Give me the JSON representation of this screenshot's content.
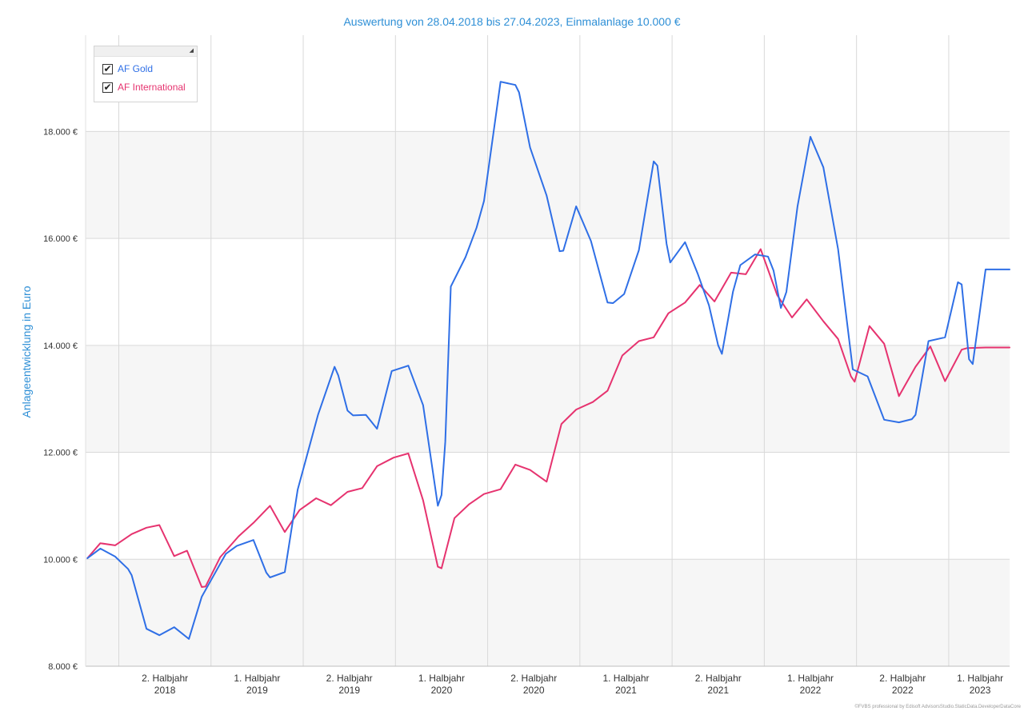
{
  "chart_data": {
    "type": "line",
    "title": "Auswertung von 28.04.2018 bis 27.04.2023, Einmalanlage 10.000 €",
    "ylabel": "Anlageentwicklung  in Euro",
    "xlabel": "",
    "ylim": [
      8000,
      19800
    ],
    "xlim": [
      2018.32,
      2023.33
    ],
    "yticks": [
      {
        "value": 8000,
        "label": "8.000 €"
      },
      {
        "value": 10000,
        "label": "10.000 €"
      },
      {
        "value": 12000,
        "label": "12.000 €"
      },
      {
        "value": 14000,
        "label": "14.000 €"
      },
      {
        "value": 16000,
        "label": "16.000 €"
      },
      {
        "value": 18000,
        "label": "18.000 €"
      }
    ],
    "xgrid": [
      2018.5,
      2019.0,
      2019.5,
      2020.0,
      2020.5,
      2021.0,
      2021.5,
      2022.0,
      2022.5,
      2023.0
    ],
    "xticks": [
      {
        "value": 2018.75,
        "line1": "2. Halbjahr",
        "line2": "2018"
      },
      {
        "value": 2019.25,
        "line1": "1. Halbjahr",
        "line2": "2019"
      },
      {
        "value": 2019.75,
        "line1": "2. Halbjahr",
        "line2": "2019"
      },
      {
        "value": 2020.25,
        "line1": "1. Halbjahr",
        "line2": "2020"
      },
      {
        "value": 2020.75,
        "line1": "2. Halbjahr",
        "line2": "2020"
      },
      {
        "value": 2021.25,
        "line1": "1. Halbjahr",
        "line2": "2021"
      },
      {
        "value": 2021.75,
        "line1": "2. Halbjahr",
        "line2": "2021"
      },
      {
        "value": 2022.25,
        "line1": "1. Halbjahr",
        "line2": "2022"
      },
      {
        "value": 2022.75,
        "line1": "2. Halbjahr",
        "line2": "2022"
      },
      {
        "value": 2023.17,
        "line1": "1. Halbjahr",
        "line2": "2023"
      }
    ],
    "grid": true,
    "legend_position": "top-left",
    "series": [
      {
        "name": "AF Gold",
        "color": "#2f6fe6",
        "points": [
          [
            2018.33,
            10020
          ],
          [
            2018.4,
            10200
          ],
          [
            2018.48,
            10050
          ],
          [
            2018.55,
            9820
          ],
          [
            2018.57,
            9700
          ],
          [
            2018.65,
            8700
          ],
          [
            2018.72,
            8580
          ],
          [
            2018.8,
            8730
          ],
          [
            2018.88,
            8510
          ],
          [
            2018.95,
            9300
          ],
          [
            2019.08,
            10100
          ],
          [
            2019.14,
            10250
          ],
          [
            2019.23,
            10360
          ],
          [
            2019.3,
            9750
          ],
          [
            2019.32,
            9660
          ],
          [
            2019.4,
            9760
          ],
          [
            2019.47,
            11300
          ],
          [
            2019.58,
            12700
          ],
          [
            2019.67,
            13600
          ],
          [
            2019.69,
            13440
          ],
          [
            2019.74,
            12780
          ],
          [
            2019.77,
            12690
          ],
          [
            2019.84,
            12700
          ],
          [
            2019.9,
            12440
          ],
          [
            2019.98,
            13520
          ],
          [
            2020.07,
            13620
          ],
          [
            2020.15,
            12880
          ],
          [
            2020.23,
            11000
          ],
          [
            2020.25,
            11200
          ],
          [
            2020.27,
            12200
          ],
          [
            2020.3,
            15100
          ],
          [
            2020.38,
            15650
          ],
          [
            2020.44,
            16200
          ],
          [
            2020.48,
            16700
          ],
          [
            2020.57,
            18930
          ],
          [
            2020.65,
            18870
          ],
          [
            2020.67,
            18730
          ],
          [
            2020.73,
            17700
          ],
          [
            2020.82,
            16800
          ],
          [
            2020.89,
            15760
          ],
          [
            2020.91,
            15770
          ],
          [
            2020.98,
            16600
          ],
          [
            2021.06,
            15950
          ],
          [
            2021.15,
            14800
          ],
          [
            2021.18,
            14790
          ],
          [
            2021.24,
            14960
          ],
          [
            2021.32,
            15780
          ],
          [
            2021.4,
            17440
          ],
          [
            2021.42,
            17360
          ],
          [
            2021.47,
            15900
          ],
          [
            2021.49,
            15550
          ],
          [
            2021.57,
            15930
          ],
          [
            2021.64,
            15330
          ],
          [
            2021.7,
            14750
          ],
          [
            2021.75,
            14000
          ],
          [
            2021.77,
            13840
          ],
          [
            2021.83,
            15000
          ],
          [
            2021.87,
            15500
          ],
          [
            2021.95,
            15700
          ],
          [
            2022.02,
            15660
          ],
          [
            2022.05,
            15400
          ],
          [
            2022.09,
            14700
          ],
          [
            2022.12,
            15000
          ],
          [
            2022.18,
            16600
          ],
          [
            2022.25,
            17900
          ],
          [
            2022.32,
            17330
          ],
          [
            2022.4,
            15800
          ],
          [
            2022.48,
            13550
          ],
          [
            2022.56,
            13420
          ],
          [
            2022.65,
            12610
          ],
          [
            2022.73,
            12560
          ],
          [
            2022.8,
            12620
          ],
          [
            2022.82,
            12700
          ],
          [
            2022.89,
            14080
          ],
          [
            2022.98,
            14150
          ],
          [
            2023.05,
            15180
          ],
          [
            2023.07,
            15140
          ],
          [
            2023.11,
            13740
          ],
          [
            2023.13,
            13650
          ],
          [
            2023.2,
            15420
          ],
          [
            2023.33,
            15420
          ]
        ]
      },
      {
        "name": "AF International",
        "color": "#e6336f",
        "points": [
          [
            2018.33,
            10020
          ],
          [
            2018.4,
            10300
          ],
          [
            2018.48,
            10260
          ],
          [
            2018.57,
            10470
          ],
          [
            2018.65,
            10590
          ],
          [
            2018.72,
            10640
          ],
          [
            2018.8,
            10060
          ],
          [
            2018.87,
            10160
          ],
          [
            2018.95,
            9480
          ],
          [
            2018.97,
            9490
          ],
          [
            2019.05,
            10040
          ],
          [
            2019.15,
            10430
          ],
          [
            2019.23,
            10680
          ],
          [
            2019.32,
            11000
          ],
          [
            2019.4,
            10510
          ],
          [
            2019.48,
            10920
          ],
          [
            2019.57,
            11140
          ],
          [
            2019.65,
            11010
          ],
          [
            2019.74,
            11260
          ],
          [
            2019.82,
            11330
          ],
          [
            2019.9,
            11740
          ],
          [
            2019.99,
            11900
          ],
          [
            2020.07,
            11980
          ],
          [
            2020.15,
            11100
          ],
          [
            2020.23,
            9860
          ],
          [
            2020.25,
            9830
          ],
          [
            2020.32,
            10770
          ],
          [
            2020.4,
            11030
          ],
          [
            2020.48,
            11220
          ],
          [
            2020.57,
            11310
          ],
          [
            2020.65,
            11770
          ],
          [
            2020.73,
            11670
          ],
          [
            2020.82,
            11450
          ],
          [
            2020.9,
            12530
          ],
          [
            2020.98,
            12800
          ],
          [
            2021.07,
            12940
          ],
          [
            2021.15,
            13150
          ],
          [
            2021.23,
            13810
          ],
          [
            2021.32,
            14080
          ],
          [
            2021.4,
            14150
          ],
          [
            2021.48,
            14600
          ],
          [
            2021.57,
            14800
          ],
          [
            2021.65,
            15130
          ],
          [
            2021.73,
            14820
          ],
          [
            2021.82,
            15360
          ],
          [
            2021.9,
            15330
          ],
          [
            2021.98,
            15800
          ],
          [
            2022.07,
            14940
          ],
          [
            2022.15,
            14520
          ],
          [
            2022.23,
            14860
          ],
          [
            2022.32,
            14450
          ],
          [
            2022.4,
            14120
          ],
          [
            2022.47,
            13420
          ],
          [
            2022.49,
            13320
          ],
          [
            2022.57,
            14360
          ],
          [
            2022.65,
            14030
          ],
          [
            2022.73,
            13050
          ],
          [
            2022.82,
            13600
          ],
          [
            2022.9,
            13980
          ],
          [
            2022.98,
            13330
          ],
          [
            2023.07,
            13920
          ],
          [
            2023.1,
            13950
          ],
          [
            2023.2,
            13960
          ],
          [
            2023.33,
            13960
          ]
        ]
      }
    ]
  },
  "legend": {
    "items": [
      {
        "label": "AF Gold",
        "checked": true,
        "color": "#2f6fe6"
      },
      {
        "label": "AF International",
        "checked": true,
        "color": "#e6336f"
      }
    ]
  },
  "footer": "©FVBS professional by Edisoft AdvisorsStudio.StaticData.DeveloperDataCore",
  "colors": {
    "title": "#2e8fd6",
    "band": "#f6f6f6",
    "grid": "#d9d9d9",
    "axis_text": "#333333"
  }
}
